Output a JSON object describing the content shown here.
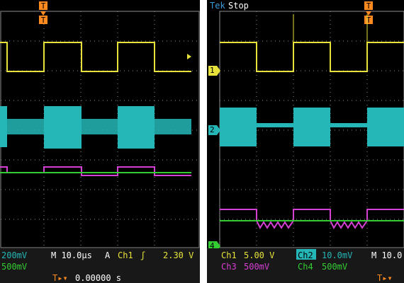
{
  "colors": {
    "ch1": "#e6e23b",
    "ch2": "#25b7b7",
    "ch3": "#d63fd3",
    "ch4": "#33cc33",
    "trigger_marker": "#ff8a1f",
    "grid": "#8c8c8c",
    "readout_bg": "#181818"
  },
  "left_scope": {
    "ch2_scale_fragment": "200mV",
    "ch4_scale_fragment": "500mV",
    "timebase": "M 10.0µs",
    "trigger_mode": "A",
    "trigger_source": "Ch1",
    "trigger_level": "2.30 V",
    "trigger_position": "0.00000 s"
  },
  "right_scope": {
    "brand": "Tek",
    "run_state": "Stop",
    "ch1_label": "Ch1",
    "ch1_scale": "5.00 V",
    "ch2_label": "Ch2",
    "ch2_scale": "10.0mV",
    "ch3_label": "Ch3",
    "ch3_scale": "500mV",
    "ch4_label": "Ch4",
    "ch4_scale": "500mV",
    "timebase_fragment": "M 10.0",
    "ch1_marker": "1",
    "ch2_marker": "2",
    "ch4_marker": "4"
  }
}
